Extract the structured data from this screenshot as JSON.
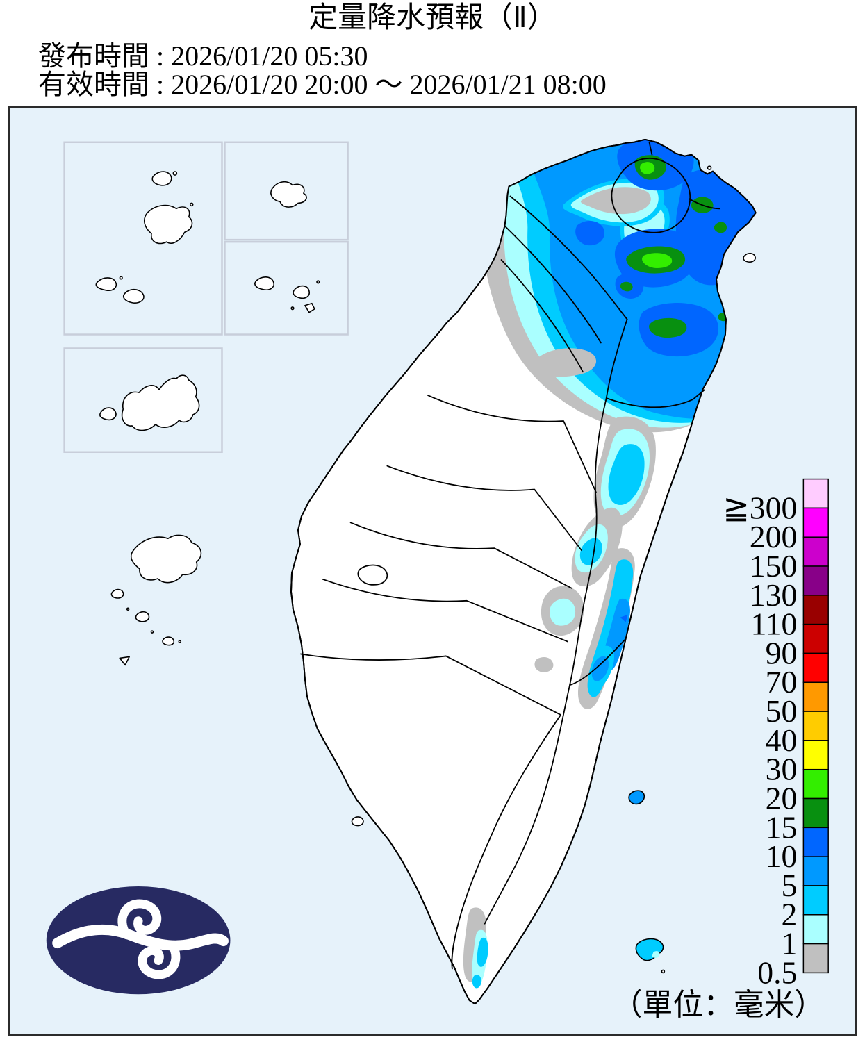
{
  "header": {
    "title": "定量降水預報（Ⅱ）",
    "issued_line": "發布時間 : 2026/01/20 05:30",
    "valid_line": "有效時間 : 2026/01/20 20:00 ～ 2026/01/21 08:00"
  },
  "map": {
    "sea_color": "#E6F2FA",
    "land_color": "#FFFFFF",
    "frame_color": "#2b2b2b"
  },
  "legend": {
    "unit_note": "（單位：毫米）",
    "entries": [
      {
        "label": "≧300",
        "color": "#FFCCFF"
      },
      {
        "label": "200",
        "color": "#FF00FF"
      },
      {
        "label": "150",
        "color": "#CC00CC"
      },
      {
        "label": "130",
        "color": "#880088"
      },
      {
        "label": "110",
        "color": "#990000"
      },
      {
        "label": "90",
        "color": "#CC0000"
      },
      {
        "label": "70",
        "color": "#FF0000"
      },
      {
        "label": "50",
        "color": "#FF9900"
      },
      {
        "label": "40",
        "color": "#FFCC00"
      },
      {
        "label": "30",
        "color": "#FFFF00"
      },
      {
        "label": "20",
        "color": "#33EE00"
      },
      {
        "label": "15",
        "color": "#089010"
      },
      {
        "label": "10",
        "color": "#0066FF"
      },
      {
        "label": "5",
        "color": "#0099FF"
      },
      {
        "label": "2",
        "color": "#00CCFF"
      },
      {
        "label": "1",
        "color": "#AAFFFF"
      },
      {
        "label": "0.5",
        "color": "#C0C0C0"
      }
    ]
  }
}
